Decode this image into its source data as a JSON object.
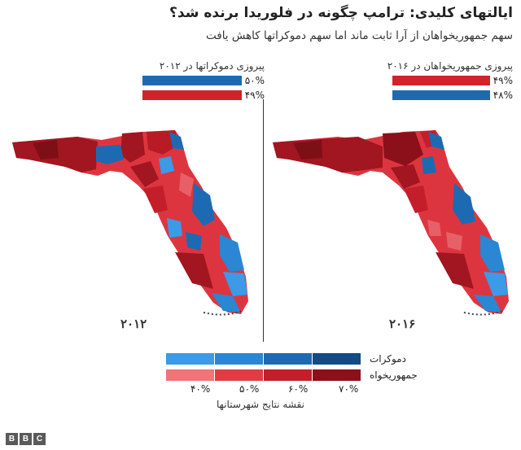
{
  "header": {
    "title": "ایالتهای کلیدی: ترامپ چگونه در فلوریدا برنده شد؟",
    "subtitle": "سهم جمهوریخواهان از آرا ثابت ماند اما سهم دموکراتها کاهش یافت"
  },
  "results": {
    "y2016": {
      "title": "پیروزی جمهوریخواهان در ۲۰۱۶",
      "rows": [
        {
          "pct": "۴۹%",
          "value": 49,
          "color": "#d0232a"
        },
        {
          "pct": "۴۸%",
          "value": 48,
          "color": "#1d6ab2"
        }
      ]
    },
    "y2012": {
      "title": "پیروزی دموکراتها در ۲۰۱۲",
      "rows": [
        {
          "pct": "۵۰%",
          "value": 50,
          "color": "#1d6ab2"
        },
        {
          "pct": "۴۹%",
          "value": 49,
          "color": "#d0232a"
        }
      ]
    }
  },
  "maps": {
    "left_year": "۲۰۱۲",
    "right_year": "۲۰۱۶"
  },
  "legend": {
    "dem_label": "دموکرات",
    "rep_label": "جمهوریخواه",
    "dem_colors": [
      "#3c9ae6",
      "#2b86d4",
      "#1d6ab2",
      "#134b82"
    ],
    "rep_colors": [
      "#f07478",
      "#e23b43",
      "#c41e2a",
      "#8c1019"
    ],
    "ticks": [
      "۴۰%",
      "۵۰%",
      "۶۰%",
      "۷۰%"
    ],
    "caption": "نقشه نتایج شهرستانها"
  },
  "footer": {
    "logo": [
      "B",
      "B",
      "C"
    ]
  }
}
